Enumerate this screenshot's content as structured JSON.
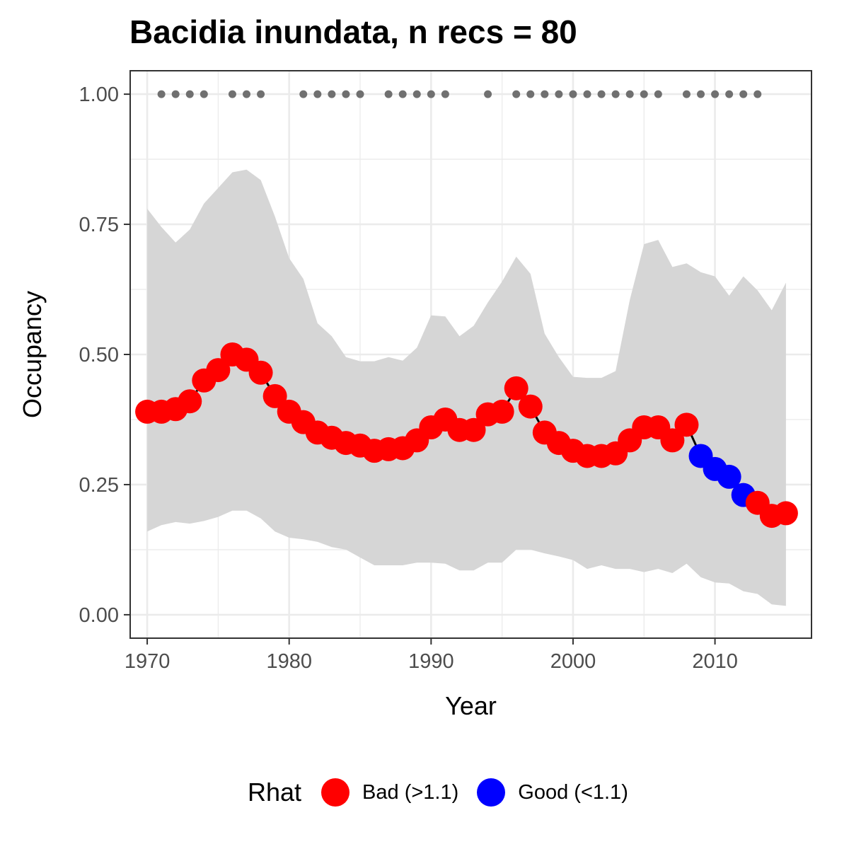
{
  "chart_data": {
    "type": "line",
    "title": "Bacidia inundata, n recs = 80",
    "xlabel": "Year",
    "ylabel": "Occupancy",
    "xlim": [
      1968.8,
      2016.8
    ],
    "ylim": [
      -0.045,
      1.045
    ],
    "x_ticks": [
      1970,
      1980,
      1990,
      2000,
      2010
    ],
    "x_tick_labels": [
      "1970",
      "1980",
      "1990",
      "2000",
      "2010"
    ],
    "y_ticks": [
      0,
      0.25,
      0.5,
      0.75,
      1.0
    ],
    "y_tick_labels": [
      "0.00",
      "0.25",
      "0.50",
      "0.75",
      "1.00"
    ],
    "grid": true,
    "x": [
      1970,
      1971,
      1972,
      1973,
      1974,
      1975,
      1976,
      1977,
      1978,
      1979,
      1980,
      1981,
      1982,
      1983,
      1984,
      1985,
      1986,
      1987,
      1988,
      1989,
      1990,
      1991,
      1992,
      1993,
      1994,
      1995,
      1996,
      1997,
      1998,
      1999,
      2000,
      2001,
      2002,
      2003,
      2004,
      2005,
      2006,
      2007,
      2008,
      2009,
      2010,
      2011,
      2012,
      2013,
      2014,
      2015
    ],
    "occupancy": [
      0.39,
      0.39,
      0.395,
      0.41,
      0.45,
      0.47,
      0.5,
      0.49,
      0.465,
      0.42,
      0.39,
      0.37,
      0.35,
      0.34,
      0.33,
      0.325,
      0.315,
      0.318,
      0.32,
      0.335,
      0.36,
      0.375,
      0.355,
      0.355,
      0.385,
      0.39,
      0.435,
      0.4,
      0.35,
      0.33,
      0.315,
      0.305,
      0.305,
      0.31,
      0.335,
      0.36,
      0.36,
      0.335,
      0.365,
      0.305,
      0.28,
      0.265,
      0.23,
      0.215,
      0.19,
      0.195
    ],
    "lower": [
      0.16,
      0.172,
      0.178,
      0.175,
      0.18,
      0.188,
      0.2,
      0.2,
      0.185,
      0.16,
      0.148,
      0.145,
      0.14,
      0.13,
      0.125,
      0.11,
      0.095,
      0.095,
      0.095,
      0.1,
      0.1,
      0.098,
      0.085,
      0.085,
      0.1,
      0.1,
      0.125,
      0.125,
      0.118,
      0.112,
      0.105,
      0.088,
      0.095,
      0.088,
      0.088,
      0.082,
      0.088,
      0.08,
      0.098,
      0.072,
      0.062,
      0.06,
      0.045,
      0.04,
      0.02,
      0.017
    ],
    "upper": [
      0.78,
      0.745,
      0.715,
      0.74,
      0.79,
      0.82,
      0.85,
      0.855,
      0.835,
      0.765,
      0.685,
      0.645,
      0.56,
      0.535,
      0.495,
      0.487,
      0.487,
      0.495,
      0.488,
      0.513,
      0.575,
      0.573,
      0.535,
      0.555,
      0.6,
      0.64,
      0.688,
      0.655,
      0.54,
      0.495,
      0.457,
      0.455,
      0.455,
      0.468,
      0.605,
      0.712,
      0.72,
      0.668,
      0.675,
      0.658,
      0.65,
      0.613,
      0.65,
      0.623,
      0.585,
      0.638
    ],
    "rhat_status": [
      "Bad",
      "Bad",
      "Bad",
      "Bad",
      "Bad",
      "Bad",
      "Bad",
      "Bad",
      "Bad",
      "Bad",
      "Bad",
      "Bad",
      "Bad",
      "Bad",
      "Bad",
      "Bad",
      "Bad",
      "Bad",
      "Bad",
      "Bad",
      "Bad",
      "Bad",
      "Bad",
      "Bad",
      "Bad",
      "Bad",
      "Bad",
      "Bad",
      "Bad",
      "Bad",
      "Bad",
      "Bad",
      "Bad",
      "Bad",
      "Bad",
      "Bad",
      "Bad",
      "Bad",
      "Bad",
      "Good",
      "Good",
      "Good",
      "Good",
      "Bad",
      "Bad",
      "Bad"
    ],
    "record_years": [
      1971,
      1972,
      1973,
      1974,
      1976,
      1977,
      1978,
      1981,
      1982,
      1983,
      1984,
      1985,
      1987,
      1988,
      1989,
      1990,
      1991,
      1994,
      1996,
      1997,
      1998,
      1999,
      2000,
      2001,
      2002,
      2003,
      2004,
      2005,
      2006,
      2008,
      2009,
      2010,
      2011,
      2012,
      2013
    ],
    "record_y": 1.0,
    "legend": {
      "title": "Rhat",
      "position": "bottom",
      "entries": [
        {
          "label": "Bad (>1.1)",
          "key": "Bad",
          "color": "#ff0000"
        },
        {
          "label": "Good (<1.1)",
          "key": "Good",
          "color": "#0000ff"
        }
      ]
    },
    "colors": {
      "ribbon": "#d6d6d6",
      "line": "#000000",
      "records": "#707070",
      "grid": "#ebebeb",
      "panel_border": "#333333"
    }
  }
}
